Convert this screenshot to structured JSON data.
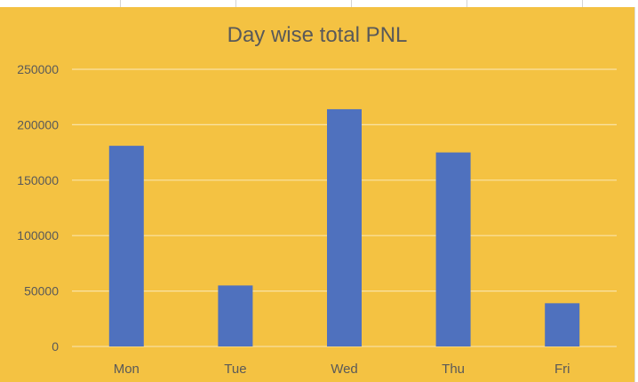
{
  "chart_data": {
    "type": "bar",
    "title": "Day wise total PNL",
    "xlabel": "",
    "ylabel": "",
    "categories": [
      "Mon",
      "Tue",
      "Wed",
      "Thu",
      "Fri"
    ],
    "values": [
      181000,
      55000,
      214000,
      175000,
      39000
    ],
    "ylim": [
      0,
      250000
    ],
    "yticks": [
      "0",
      "50000",
      "100000",
      "150000",
      "200000",
      "250000"
    ],
    "grid": true,
    "legend": "none",
    "colors": {
      "bar": "#4f71be",
      "background": "#f4c242",
      "gridline": "#f9e3a6",
      "text": "#595959"
    }
  }
}
